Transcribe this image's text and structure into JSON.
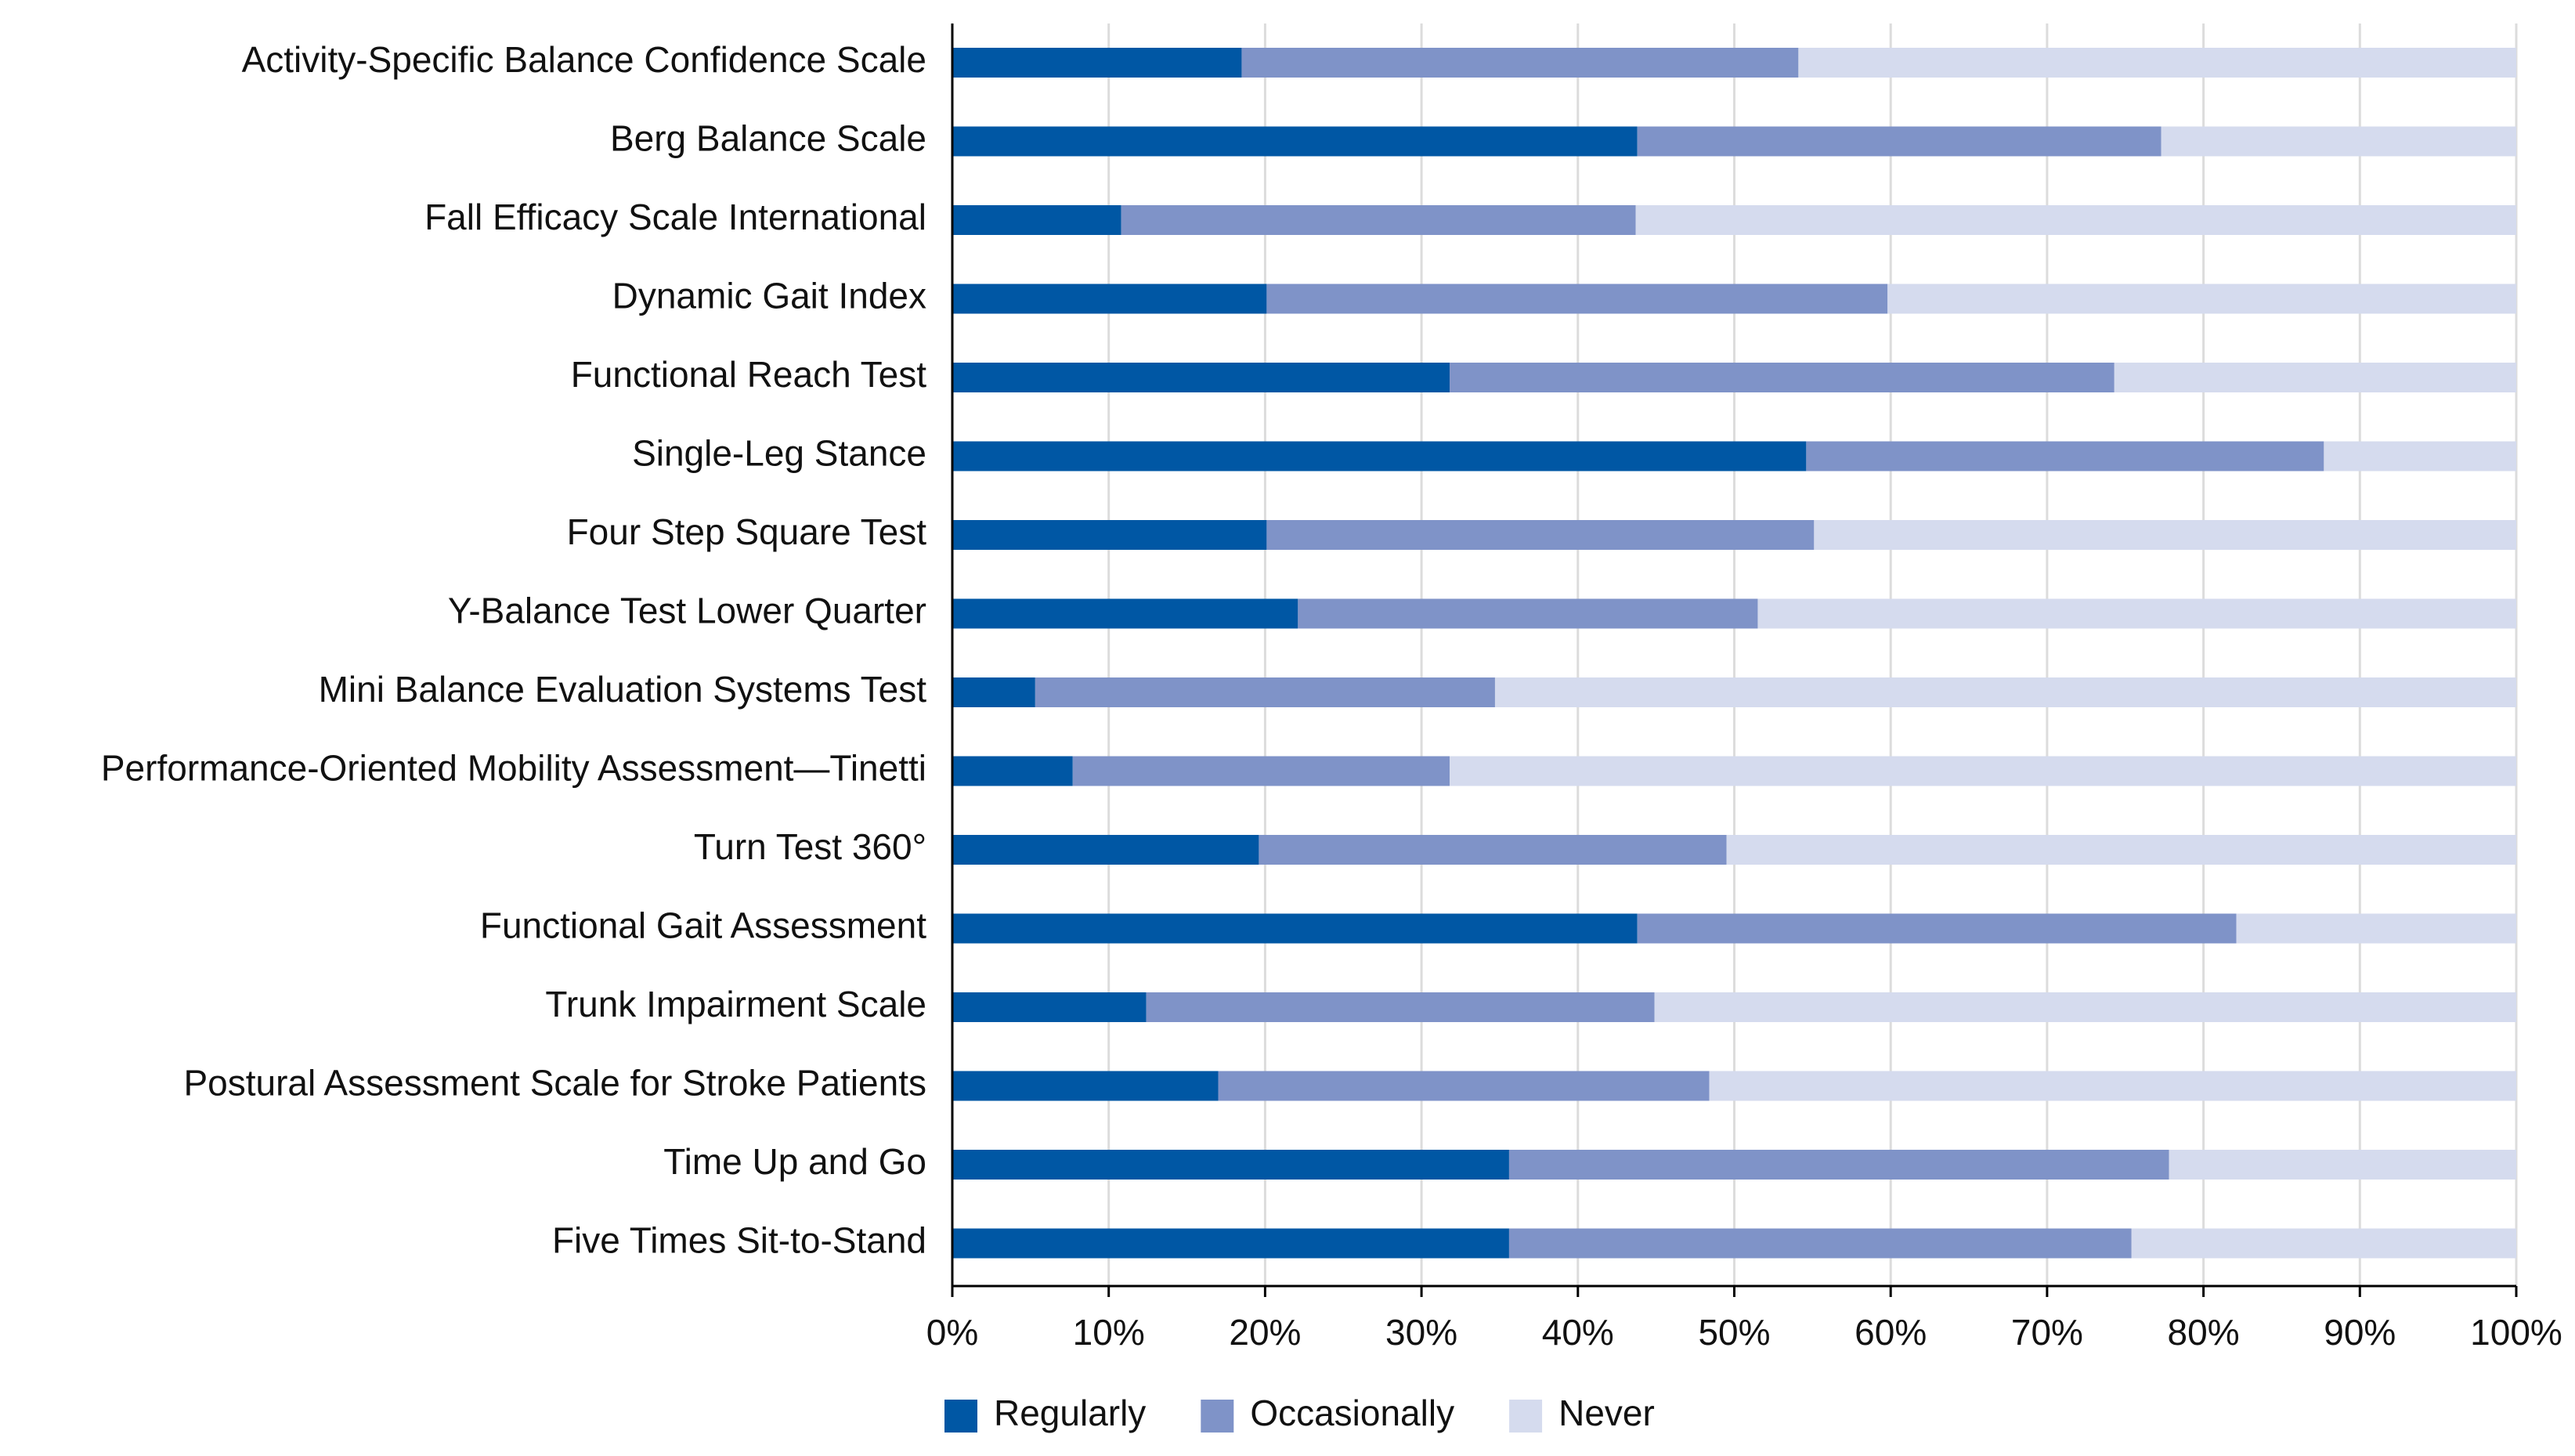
{
  "chart_data": {
    "type": "stacked-barh",
    "categories": [
      "Activity-Specific Balance Confidence Scale",
      "Berg Balance Scale",
      "Fall Efficacy Scale International",
      "Dynamic Gait Index",
      "Functional Reach Test",
      "Single-Leg Stance",
      "Four Step Square Test",
      "Y-Balance Test Lower Quarter",
      "Mini Balance Evaluation Systems Test",
      "Performance-Oriented Mobility Assessment—Tinetti",
      "Turn Test 360°",
      "Functional Gait Assessment",
      "Trunk Impairment Scale",
      "Postural Assessment Scale for Stroke Patients",
      "Time Up and Go",
      "Five Times Sit-to-Stand"
    ],
    "series": [
      {
        "name": "Regularly",
        "color": "#0057a4",
        "values": [
          18.5,
          43.8,
          10.8,
          20.1,
          31.8,
          54.6,
          20.1,
          22.1,
          5.3,
          7.7,
          19.6,
          43.8,
          12.4,
          17.0,
          35.6,
          35.6
        ]
      },
      {
        "name": "Occasionally",
        "color": "#7f93c8",
        "values": [
          35.6,
          33.5,
          32.9,
          39.7,
          42.5,
          33.1,
          35.0,
          29.4,
          29.4,
          24.1,
          29.9,
          38.3,
          32.5,
          31.4,
          42.2,
          39.8
        ]
      },
      {
        "name": "Never",
        "color": "#d5dbee",
        "values": [
          45.9,
          22.7,
          56.3,
          40.2,
          25.7,
          12.3,
          44.9,
          48.5,
          65.3,
          68.2,
          50.5,
          17.9,
          55.1,
          51.6,
          22.2,
          24.6
        ]
      }
    ],
    "xlim": [
      0,
      100
    ],
    "xticks": [
      {
        "value": 0,
        "label": "0%"
      },
      {
        "value": 10,
        "label": "10%"
      },
      {
        "value": 20,
        "label": "20%"
      },
      {
        "value": 30,
        "label": "30%"
      },
      {
        "value": 40,
        "label": "40%"
      },
      {
        "value": 50,
        "label": "50%"
      },
      {
        "value": 60,
        "label": "60%"
      },
      {
        "value": 70,
        "label": "70%"
      },
      {
        "value": 80,
        "label": "80%"
      },
      {
        "value": 90,
        "label": "90%"
      },
      {
        "value": 100,
        "label": "100%"
      }
    ],
    "grid": true,
    "legend": "bottom"
  }
}
